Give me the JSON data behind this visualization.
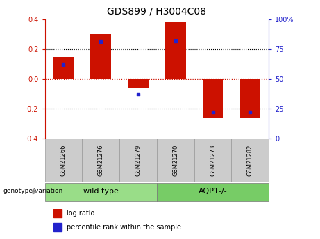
{
  "title": "GDS899 / H3004C08",
  "samples": [
    "GSM21266",
    "GSM21276",
    "GSM21279",
    "GSM21270",
    "GSM21273",
    "GSM21282"
  ],
  "log_ratios": [
    0.15,
    0.3,
    -0.06,
    0.38,
    -0.26,
    -0.265
  ],
  "percentile_ranks": [
    62,
    81,
    37,
    82,
    22,
    22
  ],
  "groups": [
    {
      "label": "wild type",
      "indices": [
        0,
        1,
        2
      ],
      "color": "#99dd88"
    },
    {
      "label": "AQP1-/-",
      "indices": [
        3,
        4,
        5
      ],
      "color": "#77cc66"
    }
  ],
  "bar_color_red": "#cc1100",
  "bar_color_blue": "#2222cc",
  "ylim_left": [
    -0.4,
    0.4
  ],
  "ylim_right": [
    0,
    100
  ],
  "yticks_left": [
    -0.4,
    -0.2,
    0.0,
    0.2,
    0.4
  ],
  "yticks_right": [
    0,
    25,
    50,
    75,
    100
  ],
  "ytick_labels_right": [
    "0",
    "25",
    "50",
    "75",
    "100%"
  ],
  "dotted_lines": [
    -0.2,
    0.0,
    0.2
  ],
  "legend_red": "log ratio",
  "legend_blue": "percentile rank within the sample",
  "genotype_label": "genotype/variation",
  "bar_width": 0.55
}
